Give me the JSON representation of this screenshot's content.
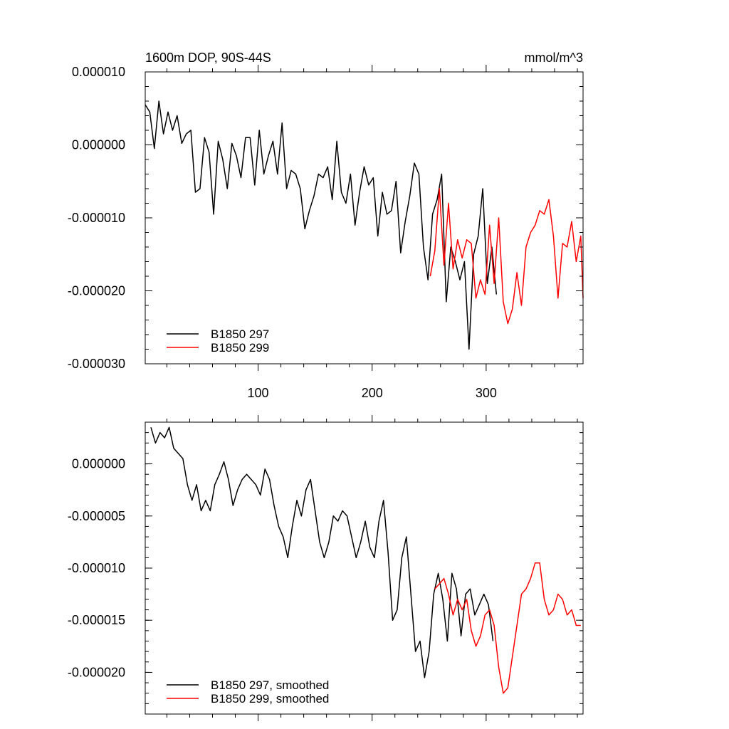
{
  "chart_data": [
    {
      "type": "line",
      "title_left": "1600m DOP, 90S-44S",
      "title_right": "mmol/m^3",
      "xlim": [
        1,
        385
      ],
      "ylim": [
        -3e-05,
        1e-05
      ],
      "yticks": [
        1e-05,
        0,
        -1e-05,
        -2e-05,
        -3e-05
      ],
      "ytick_labels": [
        "0.000010",
        "0.000000",
        "-0.000010",
        "-0.000020",
        "-0.000030"
      ],
      "xticks": [
        100,
        200,
        300
      ],
      "xtick_labels": [
        "100",
        "200",
        "300"
      ],
      "legend_position": "bottom-left",
      "series": [
        {
          "name": "B1850 297",
          "color": "#000000",
          "x": [
            1,
            5,
            9,
            13,
            17,
            21,
            25,
            29,
            33,
            37,
            41,
            45,
            49,
            53,
            57,
            61,
            65,
            69,
            73,
            77,
            81,
            85,
            89,
            93,
            97,
            101,
            105,
            109,
            113,
            117,
            121,
            125,
            129,
            133,
            137,
            141,
            145,
            149,
            153,
            157,
            161,
            165,
            169,
            173,
            177,
            181,
            185,
            189,
            193,
            197,
            201,
            205,
            209,
            213,
            217,
            221,
            225,
            229,
            233,
            237,
            241,
            245,
            249,
            253,
            257,
            261,
            265,
            269,
            273,
            277,
            281,
            285,
            289,
            293,
            297,
            301,
            305,
            309
          ],
          "values": [
            5.5e-06,
            4.5e-06,
            -5e-07,
            6e-06,
            1.5e-06,
            4.5e-06,
            2e-06,
            4e-06,
            2e-07,
            1.5e-06,
            2e-06,
            -6.5e-06,
            -6e-06,
            1e-06,
            -1e-06,
            -9.5e-06,
            5e-07,
            -2e-06,
            -6e-06,
            2e-07,
            -1.5e-06,
            -4.5e-06,
            1e-06,
            1e-06,
            -5.5e-06,
            2e-06,
            -4e-06,
            -1.5e-06,
            5e-07,
            -4e-06,
            3e-06,
            -6e-06,
            -3.5e-06,
            -4e-06,
            -6e-06,
            -1.15e-05,
            -9e-06,
            -7e-06,
            -4e-06,
            -4.5e-06,
            -3e-06,
            -7.5e-06,
            5e-07,
            -6.5e-06,
            -8e-06,
            -4e-06,
            -1.1e-05,
            -6.5e-06,
            -3e-06,
            -5.5e-06,
            -4.5e-06,
            -1.25e-05,
            -6.5e-06,
            -9.5e-06,
            -9e-06,
            -5e-06,
            -1.48e-05,
            -1.05e-05,
            -7e-06,
            -2.5e-06,
            -4e-06,
            -1.4e-05,
            -1.85e-05,
            -9.5e-06,
            -7.5e-06,
            -4e-06,
            -2.15e-05,
            -1.4e-05,
            -1.6e-05,
            -1.85e-05,
            -1.6e-05,
            -2.8e-05,
            -1.5e-05,
            -1.25e-05,
            -6e-06,
            -1.9e-05,
            -1.4e-05,
            -2.05e-05
          ]
        },
        {
          "name": "B1850 299",
          "color": "#ff0000",
          "x": [
            251,
            255,
            259,
            263,
            267,
            271,
            275,
            279,
            283,
            287,
            291,
            295,
            299,
            303,
            307,
            311,
            315,
            319,
            323,
            327,
            331,
            335,
            339,
            343,
            347,
            351,
            355,
            359,
            363,
            367,
            371,
            375,
            379,
            383,
            385
          ],
          "values": [
            -1.8e-05,
            -1.45e-05,
            -6e-06,
            -1.65e-05,
            -8e-06,
            -1.7e-05,
            -1.3e-05,
            -1.55e-05,
            -1.3e-05,
            -1.35e-05,
            -2.1e-05,
            -1.85e-05,
            -2.05e-05,
            -1.1e-05,
            -1.9e-05,
            -1e-05,
            -2.15e-05,
            -2.45e-05,
            -2.25e-05,
            -1.75e-05,
            -2.2e-05,
            -1.4e-05,
            -1.2e-05,
            -1.1e-05,
            -9e-06,
            -9.5e-06,
            -7.5e-06,
            -1.25e-05,
            -2.1e-05,
            -1.35e-05,
            -1.4e-05,
            -1.05e-05,
            -1.6e-05,
            -1.25e-05,
            -2.1e-05
          ]
        }
      ]
    },
    {
      "type": "line",
      "xlim": [
        1,
        385
      ],
      "ylim": [
        -2.4e-05,
        4e-06
      ],
      "yticks": [
        0,
        -5e-06,
        -1e-05,
        -1.5e-05,
        -2e-05
      ],
      "ytick_labels": [
        "0.000000",
        "-0.000005",
        "-0.000010",
        "-0.000015",
        "-0.000020"
      ],
      "xticks": [
        100,
        200,
        300
      ],
      "legend_position": "bottom-left",
      "series": [
        {
          "name": "B1850 297, smoothed",
          "color": "#000000",
          "x": [
            6,
            10,
            14,
            18,
            22,
            26,
            30,
            34,
            38,
            42,
            46,
            50,
            54,
            58,
            62,
            66,
            70,
            74,
            78,
            82,
            86,
            90,
            94,
            98,
            102,
            106,
            110,
            114,
            118,
            122,
            126,
            130,
            134,
            138,
            142,
            146,
            150,
            154,
            158,
            162,
            166,
            170,
            174,
            178,
            182,
            186,
            190,
            194,
            198,
            202,
            206,
            210,
            214,
            218,
            222,
            226,
            230,
            234,
            238,
            242,
            246,
            250,
            254,
            258,
            262,
            266,
            270,
            274,
            278,
            282,
            286,
            290,
            294,
            298,
            302,
            306
          ],
          "values": [
            3.5e-06,
            2e-06,
            3e-06,
            2.5e-06,
            3.5e-06,
            1.5e-06,
            1e-06,
            5e-07,
            -2e-06,
            -3.5e-06,
            -2e-06,
            -4.5e-06,
            -3.5e-06,
            -4.5e-06,
            -2e-06,
            -1e-06,
            2e-07,
            -1.5e-06,
            -4e-06,
            -2.5e-06,
            -1.5e-06,
            -1e-06,
            -1.5e-06,
            -2e-06,
            -3e-06,
            -5e-07,
            -1.5e-06,
            -4e-06,
            -6e-06,
            -7e-06,
            -9e-06,
            -6e-06,
            -3.5e-06,
            -5e-06,
            -2.5e-06,
            -1.5e-06,
            -4.5e-06,
            -7.5e-06,
            -9e-06,
            -7.5e-06,
            -5e-06,
            -5.5e-06,
            -4.5e-06,
            -5e-06,
            -7e-06,
            -9e-06,
            -7.5e-06,
            -5.5e-06,
            -8e-06,
            -9e-06,
            -5.5e-06,
            -3.5e-06,
            -8.5e-06,
            -1.5e-05,
            -1.4e-05,
            -9e-06,
            -7e-06,
            -1.25e-05,
            -1.8e-05,
            -1.7e-05,
            -2.05e-05,
            -1.8e-05,
            -1.25e-05,
            -1.05e-05,
            -1.3e-05,
            -1.7e-05,
            -1.05e-05,
            -1.2e-05,
            -1.65e-05,
            -1.25e-05,
            -1.2e-05,
            -1.45e-05,
            -1.35e-05,
            -1.25e-05,
            -1.35e-05,
            -1.7e-05
          ]
        },
        {
          "name": "B1850 299, smoothed",
          "color": "#ff0000",
          "x": [
            255,
            259,
            263,
            267,
            271,
            275,
            279,
            283,
            287,
            291,
            295,
            299,
            303,
            307,
            311,
            315,
            319,
            323,
            327,
            331,
            335,
            339,
            343,
            347,
            351,
            355,
            359,
            363,
            367,
            371,
            375,
            379,
            383
          ],
          "values": [
            -1.2e-05,
            -1.15e-05,
            -1.1e-05,
            -1.25e-05,
            -1.45e-05,
            -1.3e-05,
            -1.4e-05,
            -1.3e-05,
            -1.6e-05,
            -1.75e-05,
            -1.65e-05,
            -1.45e-05,
            -1.4e-05,
            -1.55e-05,
            -1.95e-05,
            -2.2e-05,
            -2.15e-05,
            -1.85e-05,
            -1.55e-05,
            -1.25e-05,
            -1.2e-05,
            -1.1e-05,
            -9.5e-06,
            -9.5e-06,
            -1.3e-05,
            -1.45e-05,
            -1.4e-05,
            -1.25e-05,
            -1.3e-05,
            -1.45e-05,
            -1.4e-05,
            -1.55e-05,
            -1.55e-05
          ]
        }
      ]
    }
  ]
}
